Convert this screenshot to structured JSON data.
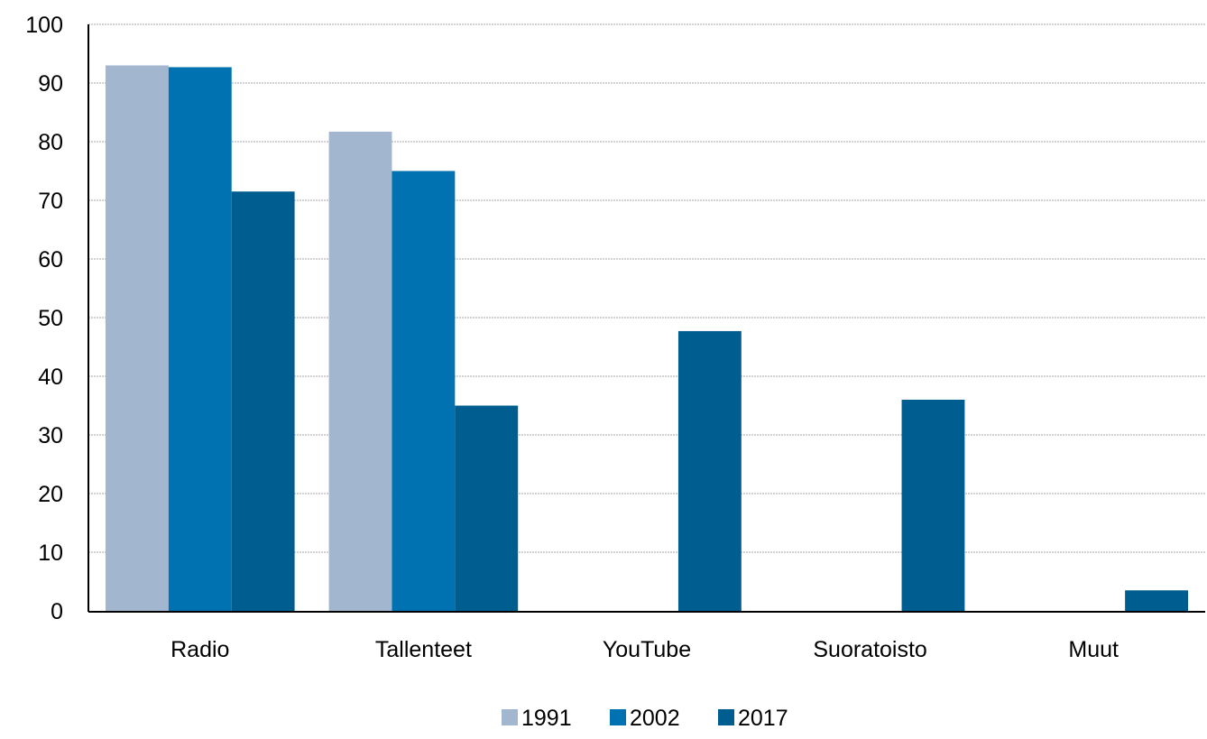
{
  "chart_data": {
    "type": "bar",
    "categories": [
      "Radio",
      "Tallenteet",
      "YouTube",
      "Suoratoisto",
      "Muut"
    ],
    "series": [
      {
        "name": "1991",
        "color": "#a2b6d0",
        "values": [
          93,
          81.7,
          null,
          null,
          null
        ]
      },
      {
        "name": "2002",
        "color": "#0072b2",
        "values": [
          92.7,
          75,
          null,
          null,
          null
        ]
      },
      {
        "name": "2017",
        "color": "#005d8f",
        "values": [
          71.5,
          35,
          47.7,
          36,
          3.5
        ]
      }
    ],
    "ylim": [
      0,
      100
    ],
    "yticks": [
      0,
      10,
      20,
      30,
      40,
      50,
      60,
      70,
      80,
      90,
      100
    ],
    "grid": true,
    "legend_position": "bottom"
  }
}
